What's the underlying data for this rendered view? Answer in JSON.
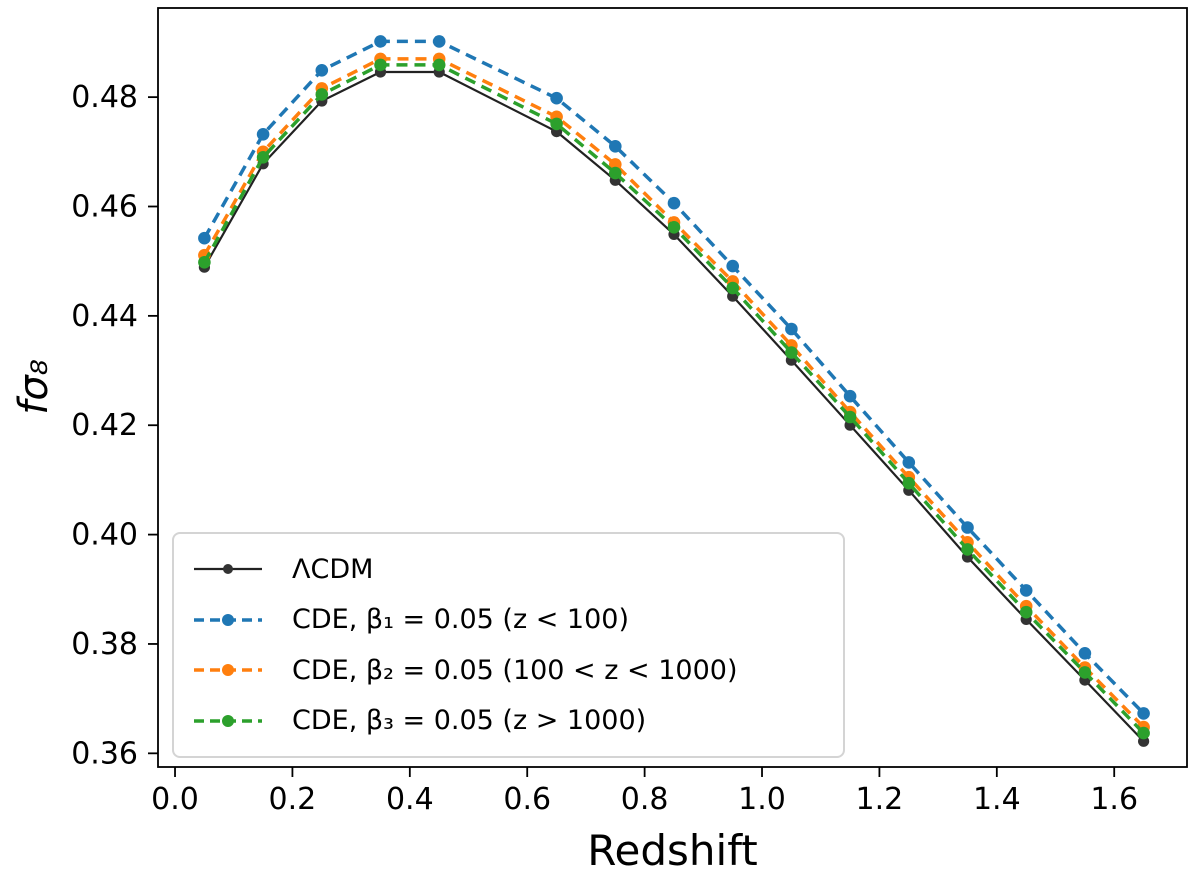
{
  "chart_data": {
    "type": "line",
    "title": "",
    "xlabel": "Redshift",
    "ylabel": "fσ₈",
    "grid": false,
    "legend_position": "lower left",
    "xlim": [
      -0.029,
      1.724
    ],
    "ylim": [
      0.3575,
      0.4963
    ],
    "x_ticks": [
      0.0,
      0.2,
      0.4,
      0.6,
      0.8,
      1.0,
      1.2,
      1.4,
      1.6
    ],
    "x_tick_labels": [
      "0.0",
      "0.2",
      "0.4",
      "0.6",
      "0.8",
      "1.0",
      "1.2",
      "1.4",
      "1.6"
    ],
    "y_ticks": [
      0.36,
      0.38,
      0.4,
      0.42,
      0.44,
      0.46,
      0.48
    ],
    "y_tick_labels": [
      "0.36",
      "0.38",
      "0.40",
      "0.42",
      "0.44",
      "0.46",
      "0.48"
    ],
    "x": [
      0.05,
      0.15,
      0.25,
      0.35,
      0.45,
      0.65,
      0.75,
      0.85,
      0.95,
      1.05,
      1.15,
      1.25,
      1.35,
      1.45,
      1.55,
      1.65
    ],
    "series": [
      {
        "name": "ΛCDM",
        "color": "#222222",
        "marker_color": "#333333",
        "style": "solid",
        "line_width": 2.2,
        "marker_radius": 5.6,
        "values": [
          0.4489,
          0.4678,
          0.4793,
          0.4846,
          0.4846,
          0.4737,
          0.4648,
          0.4549,
          0.4436,
          0.4319,
          0.42,
          0.4081,
          0.3959,
          0.3845,
          0.3734,
          0.3622
        ]
      },
      {
        "name": "CDE, β₁ = 0.05 (z < 100)",
        "color": "#1f77b4",
        "marker_color": "#1f77b4",
        "style": "dashed",
        "line_width": 3.5,
        "marker_radius": 6.3,
        "values": [
          0.4542,
          0.4732,
          0.4849,
          0.4902,
          0.4902,
          0.4798,
          0.471,
          0.4606,
          0.4491,
          0.4376,
          0.4253,
          0.4132,
          0.4013,
          0.3898,
          0.3783,
          0.3673
        ]
      },
      {
        "name": "CDE, β₂ = 0.05 (100 < z < 1000)",
        "color": "#ff7f0e",
        "marker_color": "#ff7f0e",
        "style": "dashed",
        "line_width": 3.5,
        "marker_radius": 6.3,
        "values": [
          0.4511,
          0.47,
          0.4816,
          0.487,
          0.487,
          0.4764,
          0.4677,
          0.4571,
          0.4463,
          0.4346,
          0.4224,
          0.4105,
          0.3986,
          0.3869,
          0.3757,
          0.3648
        ]
      },
      {
        "name": "CDE, β₃ = 0.05 (z > 1000)",
        "color": "#2ca02c",
        "marker_color": "#2ca02c",
        "style": "dashed",
        "line_width": 3.5,
        "marker_radius": 6.3,
        "values": [
          0.4498,
          0.469,
          0.4805,
          0.4859,
          0.4859,
          0.4751,
          0.4661,
          0.4562,
          0.4451,
          0.4333,
          0.4215,
          0.4094,
          0.3973,
          0.3858,
          0.3748,
          0.3637
        ]
      }
    ]
  }
}
